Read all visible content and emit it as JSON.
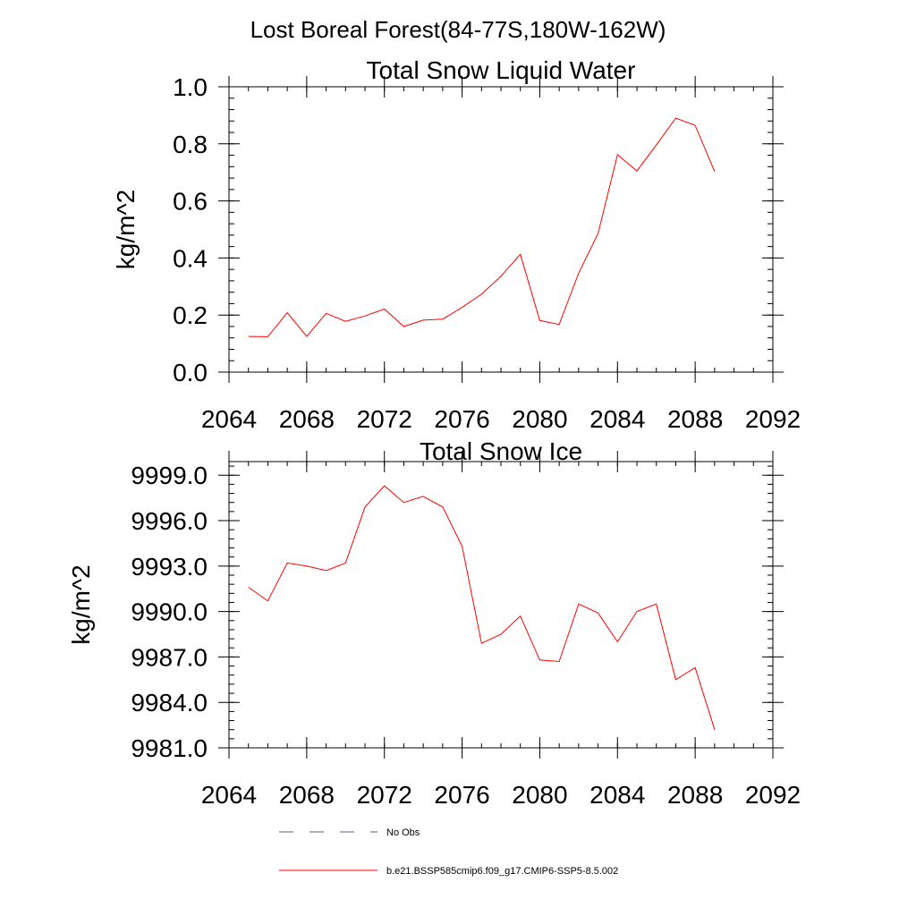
{
  "figure_title": "Lost Boreal Forest(84-77S,180W-162W)",
  "colors": {
    "series": "#ff0000",
    "obs": "#5a5a8c",
    "axis": "#000000"
  },
  "legend": {
    "obs_label": "No Obs",
    "model_label": "b.e21.BSSP585cmip6.f09_g17.CMIP6-SSP5-8.5.002"
  },
  "chart_data": [
    {
      "type": "line",
      "title": "Total Snow Liquid Water",
      "xlabel": "",
      "ylabel": "kg/m^2",
      "xlim": [
        2064,
        2092
      ],
      "ylim": [
        0.0,
        1.0
      ],
      "x_ticks": [
        2064,
        2068,
        2072,
        2076,
        2080,
        2084,
        2088,
        2092
      ],
      "x_tick_labels": [
        "2064",
        "2068",
        "2072",
        "2076",
        "2080",
        "2084",
        "2088",
        "2092"
      ],
      "y_ticks": [
        0.0,
        0.2,
        0.4,
        0.6,
        0.8,
        1.0
      ],
      "y_tick_labels": [
        "0.0",
        "0.2",
        "0.4",
        "0.6",
        "0.8",
        "1.0"
      ],
      "grid": false,
      "series": [
        {
          "name": "b.e21.BSSP585cmip6.f09_g17.CMIP6-SSP5-8.5.002",
          "x": [
            2065,
            2066,
            2067,
            2068,
            2069,
            2070,
            2071,
            2072,
            2073,
            2074,
            2075,
            2076,
            2077,
            2078,
            2079,
            2080,
            2081,
            2082,
            2083,
            2084,
            2085,
            2086,
            2087,
            2088,
            2089
          ],
          "values": [
            0.125,
            0.124,
            0.208,
            0.125,
            0.206,
            0.178,
            0.197,
            0.221,
            0.16,
            0.182,
            0.186,
            0.227,
            0.273,
            0.336,
            0.413,
            0.181,
            0.167,
            0.347,
            0.486,
            0.762,
            0.705,
            0.796,
            0.89,
            0.865,
            0.703
          ]
        }
      ]
    },
    {
      "type": "line",
      "title": "Total Snow Ice",
      "xlabel": "",
      "ylabel": "kg/m^2",
      "xlim": [
        2064,
        2092
      ],
      "ylim": [
        9981.0,
        9999.9
      ],
      "x_ticks": [
        2064,
        2068,
        2072,
        2076,
        2080,
        2084,
        2088,
        2092
      ],
      "x_tick_labels": [
        "2064",
        "2068",
        "2072",
        "2076",
        "2080",
        "2084",
        "2088",
        "2092"
      ],
      "y_ticks": [
        9981.0,
        9984.0,
        9987.0,
        9990.0,
        9993.0,
        9996.0,
        9999.0
      ],
      "y_tick_labels": [
        "9981.0",
        "9984.0",
        "9987.0",
        "9990.0",
        "9993.0",
        "9996.0",
        "9999.0"
      ],
      "grid": false,
      "series": [
        {
          "name": "b.e21.BSSP585cmip6.f09_g17.CMIP6-SSP5-8.5.002",
          "x": [
            2065,
            2066,
            2067,
            2068,
            2069,
            2070,
            2071,
            2072,
            2073,
            2074,
            2075,
            2076,
            2077,
            2078,
            2079,
            2080,
            2081,
            2082,
            2083,
            2084,
            2085,
            2086,
            2087,
            2088,
            2089
          ],
          "values": [
            9991.6,
            9990.7,
            9993.2,
            9993.0,
            9992.7,
            9993.2,
            9996.9,
            9998.3,
            9997.2,
            9997.6,
            9996.9,
            9994.3,
            9987.9,
            9988.5,
            9989.7,
            9986.8,
            9986.7,
            9990.5,
            9989.9,
            9988.0,
            9990.0,
            9990.5,
            9985.5,
            9986.3,
            9982.2
          ]
        }
      ]
    }
  ]
}
